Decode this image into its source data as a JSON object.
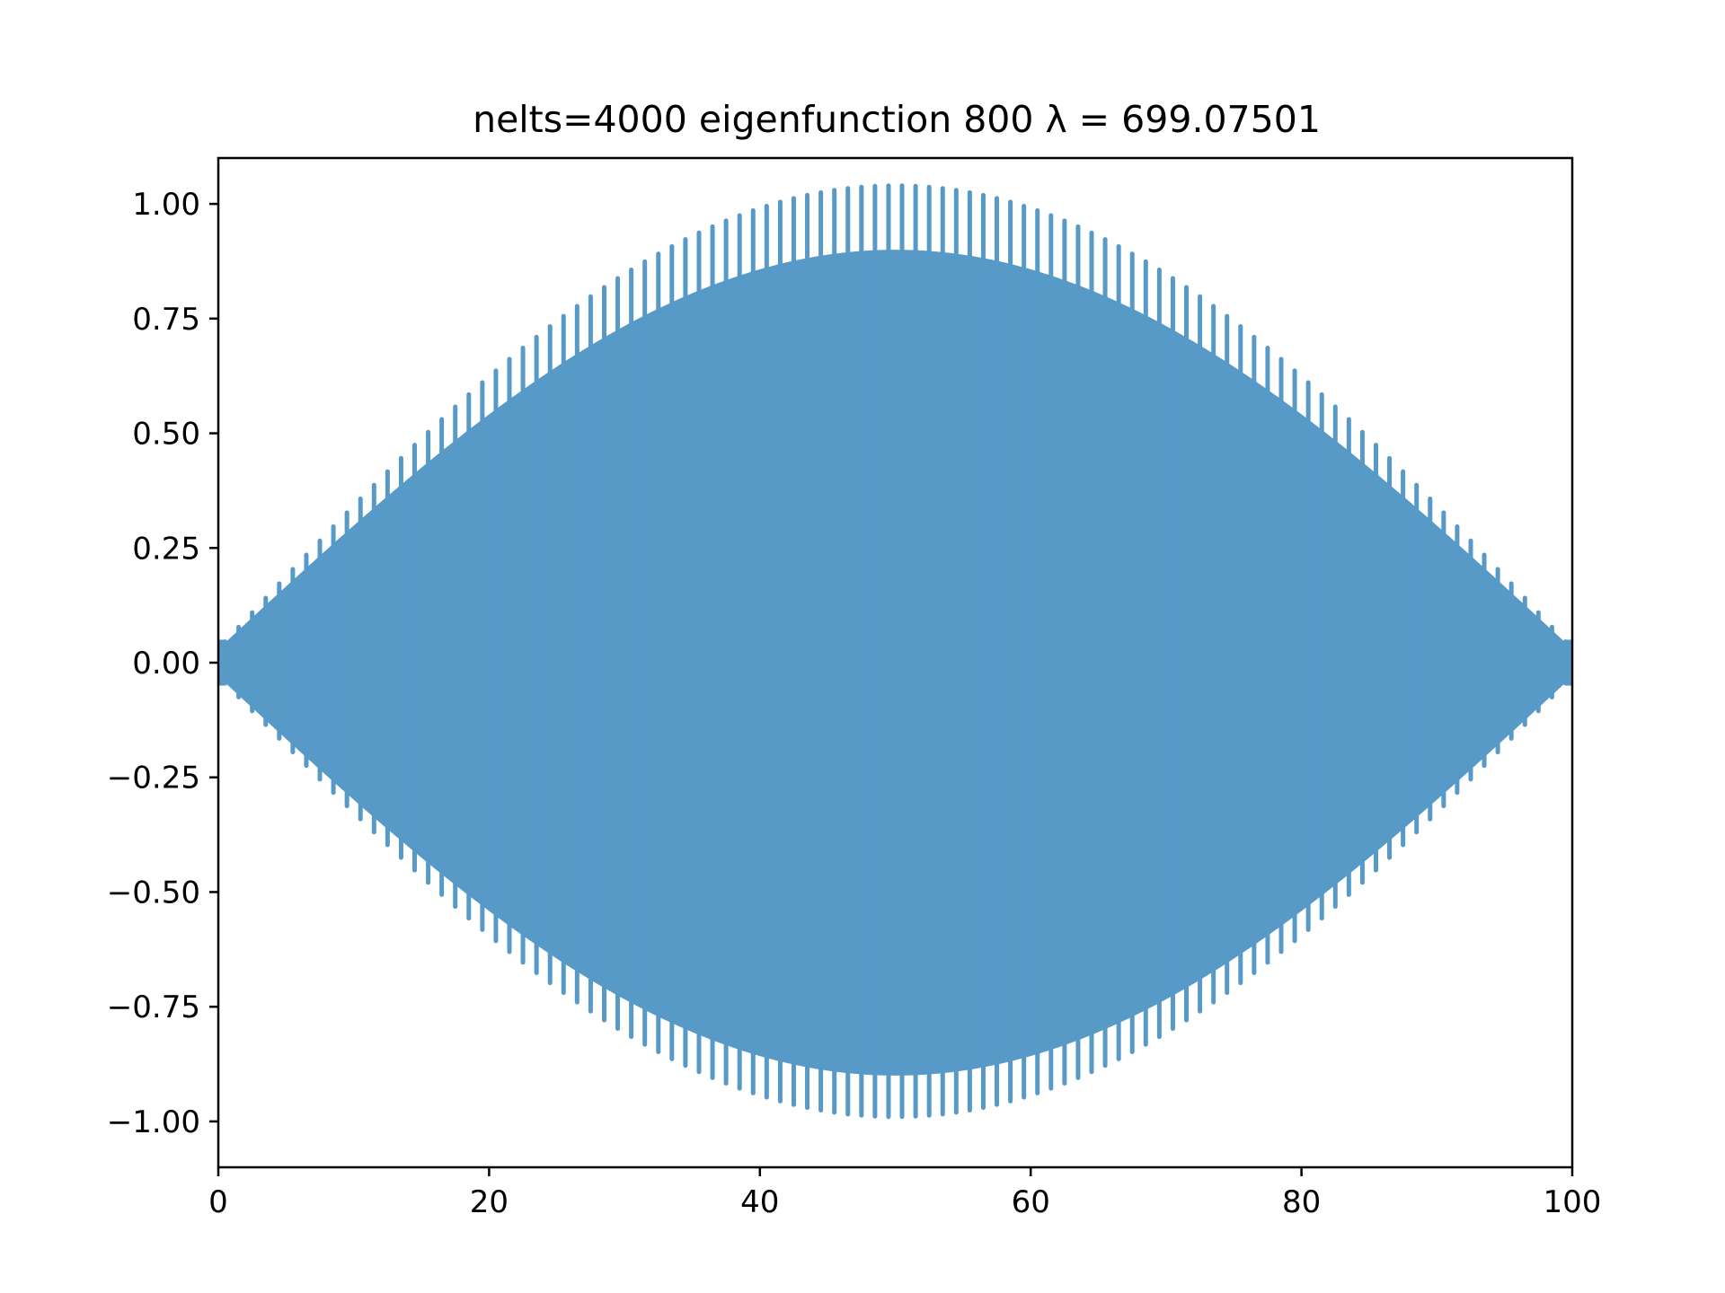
{
  "chart_data": {
    "type": "line",
    "title": "nelts=4000  eigenfunction 800  λ = 699.07501",
    "xlabel": "",
    "ylabel": "",
    "xlim": [
      0,
      100
    ],
    "ylim": [
      -1.1,
      1.1
    ],
    "xticks": [
      0,
      20,
      40,
      60,
      80,
      100
    ],
    "xtick_labels": [
      "0",
      "20",
      "40",
      "60",
      "80",
      "100"
    ],
    "yticks": [
      1.0,
      0.75,
      0.5,
      0.25,
      0.0,
      -0.25,
      -0.5,
      -0.75,
      -1.0
    ],
    "ytick_labels": [
      "1.00",
      "0.75",
      "0.50",
      "0.25",
      "0.00",
      "−0.25",
      "−0.50",
      "−0.75",
      "−1.00"
    ],
    "grid": false,
    "legend": "none",
    "series": [
      {
        "color": "#5799c7",
        "description_values": {
          "x_range": [
            0,
            100
          ],
          "outer_envelope_peak_upper": 1.01,
          "inner_envelope_peak_upper": 0.87,
          "outer_envelope_peak_lower": -0.96,
          "inner_envelope_peak_lower": -0.87,
          "peak_x": 50,
          "envelope_shape": "sine",
          "visible_spikes": 100
        }
      }
    ]
  }
}
